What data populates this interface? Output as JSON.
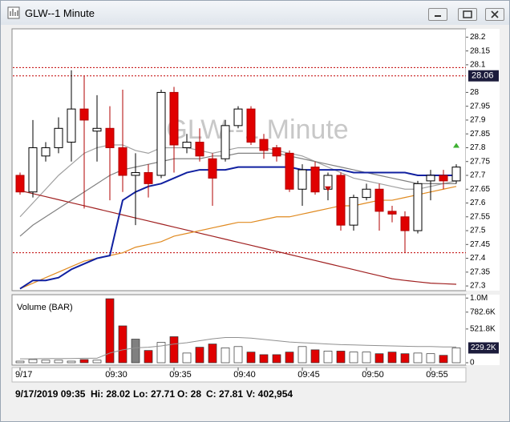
{
  "window_title": "GLW--1 Minute",
  "status": {
    "datetime": "9/17/2019 09:35",
    "hi": "Hi: 28.02",
    "lo": "Lo: 27.71",
    "o": "O: 28",
    "c": "C: 27.81",
    "v": "V: 402,954"
  },
  "chart_data": {
    "type": "candlestick",
    "watermark": "GLW--1 Minute",
    "volume_title": "Volume (BAR)",
    "categories": [
      "9/17",
      null,
      null,
      null,
      null,
      null,
      null,
      "09:30",
      null,
      null,
      null,
      null,
      "09:35",
      null,
      null,
      null,
      null,
      "09:40",
      null,
      null,
      null,
      null,
      "09:45",
      null,
      null,
      null,
      null,
      "09:50",
      null,
      null,
      null,
      null,
      "09:55",
      null,
      null
    ],
    "open": [
      27.7,
      27.64,
      27.77,
      27.8,
      27.82,
      27.94,
      27.86,
      27.87,
      27.8,
      27.7,
      27.71,
      27.7,
      28.0,
      27.8,
      27.82,
      27.76,
      27.76,
      27.88,
      27.94,
      27.83,
      27.8,
      27.78,
      27.65,
      27.73,
      27.65,
      27.7,
      27.52,
      27.62,
      27.65,
      27.57,
      27.55,
      27.5,
      27.68,
      27.7,
      27.68
    ],
    "high": [
      27.71,
      27.9,
      27.82,
      27.91,
      28.08,
      28.06,
      27.99,
      27.95,
      28.01,
      27.78,
      27.74,
      28.01,
      28.02,
      27.85,
      27.87,
      27.78,
      27.9,
      27.95,
      27.95,
      27.85,
      27.81,
      27.79,
      27.74,
      27.75,
      27.71,
      27.71,
      27.63,
      27.67,
      27.67,
      27.59,
      27.57,
      27.68,
      27.72,
      27.72,
      27.74
    ],
    "low": [
      27.63,
      27.62,
      27.75,
      27.78,
      27.75,
      27.58,
      27.75,
      27.61,
      27.64,
      27.52,
      27.62,
      27.69,
      27.71,
      27.78,
      27.75,
      27.59,
      27.75,
      27.87,
      27.81,
      27.76,
      27.75,
      27.64,
      27.59,
      27.63,
      27.61,
      27.5,
      27.5,
      27.61,
      27.5,
      27.53,
      27.42,
      27.49,
      27.61,
      27.65,
      27.67
    ],
    "close": [
      27.64,
      27.8,
      27.8,
      27.87,
      27.94,
      27.9,
      27.87,
      27.8,
      27.7,
      27.71,
      27.67,
      28.0,
      27.81,
      27.82,
      27.77,
      27.69,
      27.88,
      27.94,
      27.82,
      27.79,
      27.77,
      27.65,
      27.72,
      27.64,
      27.7,
      27.52,
      27.62,
      27.65,
      27.57,
      27.56,
      27.5,
      27.67,
      27.7,
      27.68,
      27.73
    ],
    "up_color": "#ffffff",
    "down_color": "#e00000",
    "lines": [
      {
        "color": "#a0a0a0",
        "values": [
          27.55,
          27.6,
          27.65,
          27.7,
          27.74,
          27.78,
          27.8,
          27.81,
          27.81,
          27.79,
          27.78,
          27.8,
          27.8,
          27.8,
          27.79,
          27.78,
          27.79,
          27.8,
          27.8,
          27.8,
          27.79,
          27.78,
          27.77,
          27.75,
          27.73,
          27.71,
          27.69,
          27.68,
          27.67,
          27.66,
          27.65,
          27.65,
          27.66,
          27.67,
          27.68
        ]
      },
      {
        "color": "#808080",
        "values": [
          27.48,
          27.52,
          27.55,
          27.58,
          27.61,
          27.64,
          27.67,
          27.7,
          27.72,
          27.73,
          27.74,
          27.75,
          27.76,
          27.76,
          27.76,
          27.77,
          27.77,
          27.78,
          27.78,
          27.78,
          27.78,
          27.77,
          27.76,
          27.75,
          27.74,
          27.73,
          27.72,
          27.71,
          27.7,
          27.69,
          27.68,
          27.67,
          27.67,
          27.67,
          27.67
        ]
      },
      {
        "color": "#a02020",
        "values": [
          27.645,
          27.634,
          27.623,
          27.612,
          27.601,
          27.59,
          27.579,
          27.568,
          27.557,
          27.546,
          27.535,
          27.524,
          27.513,
          27.502,
          27.491,
          27.48,
          27.469,
          27.458,
          27.447,
          27.436,
          27.425,
          27.414,
          27.403,
          27.392,
          27.381,
          27.37,
          27.359,
          27.348,
          27.337,
          27.326,
          27.32,
          27.315,
          27.31,
          27.308,
          27.306
        ]
      },
      {
        "color": "#e08a20",
        "values": [
          27.29,
          27.31,
          27.33,
          27.35,
          27.37,
          27.39,
          27.4,
          27.41,
          27.42,
          27.44,
          27.45,
          27.46,
          27.48,
          27.49,
          27.5,
          27.51,
          27.52,
          27.53,
          27.53,
          27.54,
          27.55,
          27.55,
          27.56,
          27.57,
          27.58,
          27.59,
          27.59,
          27.6,
          27.61,
          27.61,
          27.62,
          27.63,
          27.64,
          27.65,
          27.66
        ]
      },
      {
        "color": "#1020a0",
        "values": [
          27.29,
          27.32,
          27.32,
          27.33,
          27.36,
          27.38,
          27.4,
          27.41,
          27.61,
          27.64,
          27.66,
          27.67,
          27.69,
          27.71,
          27.72,
          27.72,
          27.72,
          27.73,
          27.73,
          27.73,
          27.73,
          27.73,
          27.72,
          27.72,
          27.72,
          27.72,
          27.71,
          27.71,
          27.71,
          27.71,
          27.71,
          27.7,
          27.7,
          27.7,
          27.7
        ]
      }
    ],
    "hlines": [
      28.09,
      27.42
    ],
    "hline_color": "#c00000",
    "price_marker": 28.06,
    "ylim": [
      27.28,
      28.23
    ],
    "yticks": [
      28.2,
      28.15,
      28.1,
      28,
      27.95,
      27.9,
      27.85,
      27.8,
      27.75,
      27.7,
      27.65,
      27.6,
      27.55,
      27.5,
      27.45,
      27.4,
      27.35,
      27.3
    ],
    "volume": [
      25000,
      50000,
      40000,
      40000,
      25000,
      50000,
      40000,
      990000,
      570000,
      365000,
      190000,
      315000,
      402954,
      150000,
      240000,
      290000,
      230000,
      250000,
      165000,
      125000,
      125000,
      165000,
      250000,
      200000,
      180000,
      180000,
      165000,
      165000,
      140000,
      165000,
      140000,
      150000,
      140000,
      115000,
      229200
    ],
    "volume_colors": [
      "#ffffff",
      "#ffffff",
      "#ffffff",
      "#ffffff",
      "#ffffff",
      "#e00000",
      "#ffffff",
      "#e00000",
      "#e00000",
      "#808080",
      "#e00000",
      "#ffffff",
      "#e00000",
      "#ffffff",
      "#e00000",
      "#e00000",
      "#ffffff",
      "#ffffff",
      "#e00000",
      "#e00000",
      "#e00000",
      "#e00000",
      "#ffffff",
      "#e00000",
      "#ffffff",
      "#e00000",
      "#ffffff",
      "#ffffff",
      "#e00000",
      "#e00000",
      "#e00000",
      "#ffffff",
      "#ffffff",
      "#e00000",
      "#ffffff"
    ],
    "volume_avg": {
      "color": "#909090",
      "values": [
        60000,
        60000,
        65000,
        65000,
        65000,
        70000,
        70000,
        150000,
        200000,
        230000,
        240000,
        260000,
        290000,
        310000,
        340000,
        370000,
        390000,
        390000,
        380000,
        360000,
        340000,
        320000,
        310000,
        300000,
        290000,
        280000,
        275000,
        270000,
        265000,
        260000,
        255000,
        250000,
        250000,
        245000,
        245000
      ]
    },
    "volume_marker": {
      "value": 229200,
      "label": "229.2K"
    },
    "volume_ylim": [
      0,
      1040000
    ],
    "volume_yticks": [
      {
        "value": 1000000,
        "label": "1.0M"
      },
      {
        "value": 782600,
        "label": "782.6K"
      },
      {
        "value": 521800,
        "label": "521.8K"
      },
      0
    ]
  }
}
